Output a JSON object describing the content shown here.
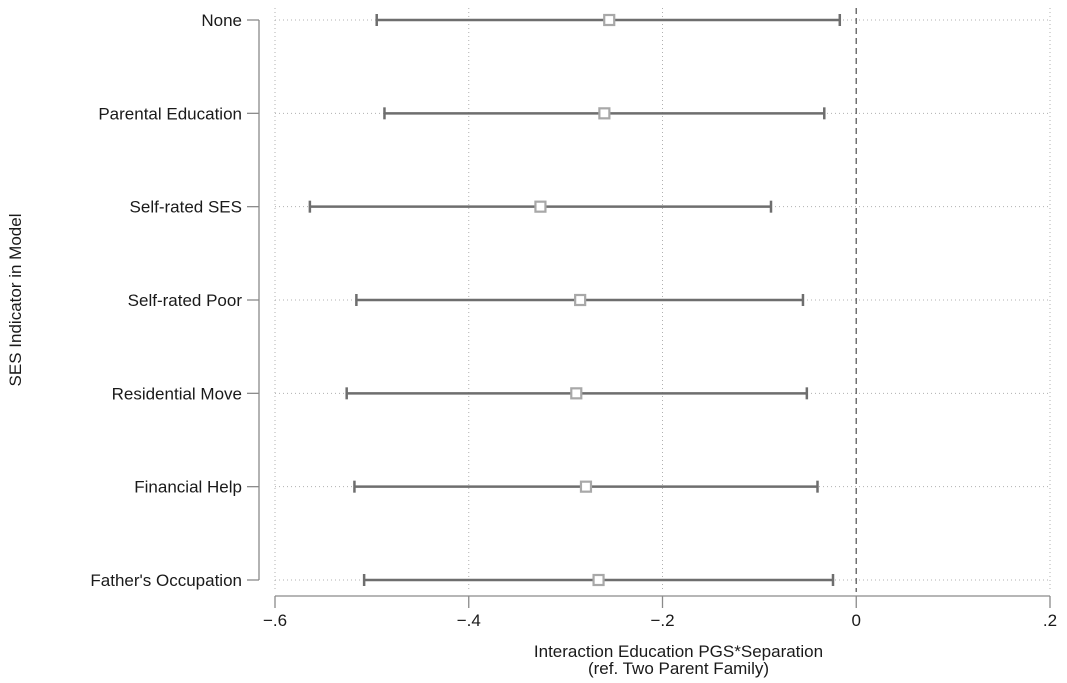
{
  "chart_data": {
    "type": "scatter",
    "subtype": "coefficient-plot",
    "xlabel": [
      "Interaction Education PGS*Separation",
      "(ref. Two Parent Family)"
    ],
    "ylabel": "SES Indicator in Model",
    "xlim": [
      -0.6,
      0.2
    ],
    "xticks": [
      -0.6,
      -0.4,
      -0.2,
      0,
      0.2
    ],
    "xtick_labels": [
      "−.6",
      "−.4",
      "−.2",
      "0",
      ".2"
    ],
    "reference_line_x": 0,
    "grid": true,
    "categories": [
      "None",
      "Parental Education",
      "Self-rated SES",
      "Self-rated Poor",
      "Residential Move",
      "Financial Help",
      "Father's Occupation"
    ],
    "estimates": [
      -0.255,
      -0.26,
      -0.326,
      -0.285,
      -0.289,
      -0.279,
      -0.266
    ],
    "ci_lower": [
      -0.495,
      -0.487,
      -0.564,
      -0.516,
      -0.526,
      -0.518,
      -0.508
    ],
    "ci_upper": [
      -0.017,
      -0.033,
      -0.088,
      -0.055,
      -0.051,
      -0.04,
      -0.024
    ],
    "colors": {
      "ci_line": "#6e6e6e",
      "marker": "#a8a8a8",
      "grid": "#b0b0b0",
      "axis": "#8a8a8a",
      "ref_line": "#707070"
    }
  }
}
